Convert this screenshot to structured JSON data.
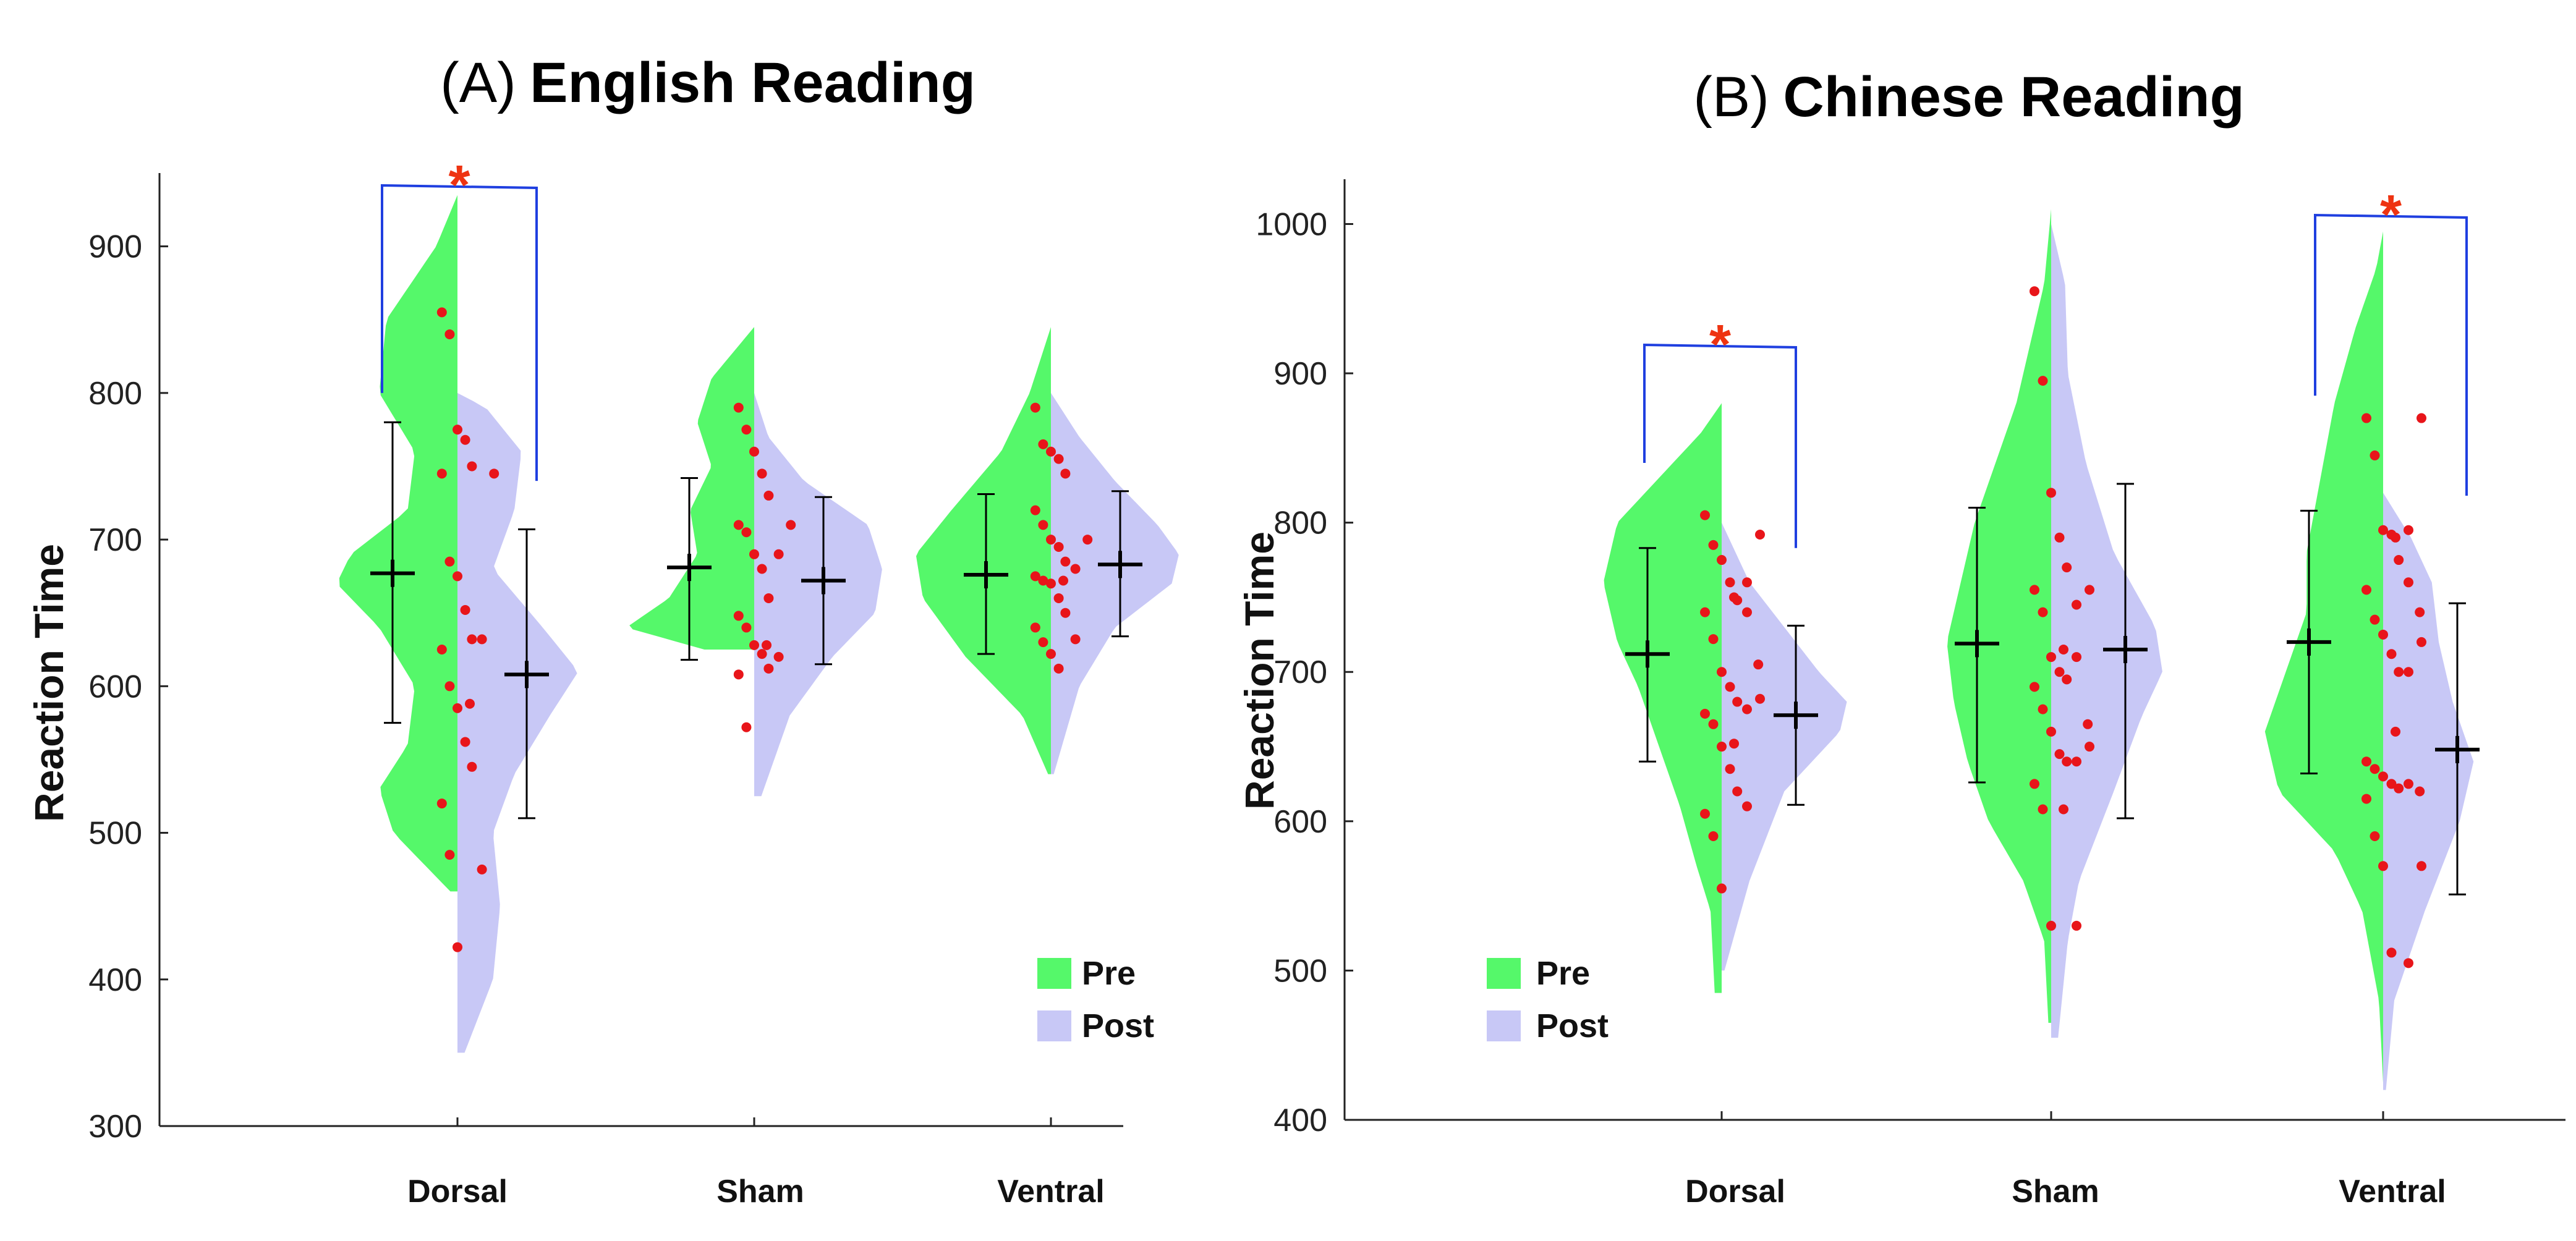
{
  "colors": {
    "pre": "#55f86a",
    "post": "#c8c8f6",
    "dot": "#e8151a",
    "bracket": "#1f3fe0",
    "star": "#ee3311",
    "axis": "#222222"
  },
  "chart_data": [
    {
      "type": "violin",
      "panel": "(A)",
      "title": "English Reading",
      "ylabel": "Reaction Time",
      "xlabel": "",
      "ylim": [
        300,
        950
      ],
      "yticks": [
        300,
        400,
        500,
        600,
        700,
        800,
        900
      ],
      "categories": [
        "Dorsal",
        "Sham",
        "Ventral"
      ],
      "legend": {
        "position": "bottom-right",
        "entries": [
          "Pre",
          "Post"
        ]
      },
      "series": [
        {
          "name": "Pre",
          "means": [
            677,
            681,
            676
          ],
          "error_bars": [
            [
              575,
              780
            ],
            [
              618,
              742
            ],
            [
              622,
              731
            ]
          ],
          "violin_range": [
            [
              460,
              935
            ],
            [
              625,
              845
            ],
            [
              540,
              845
            ]
          ],
          "profiles": [
            [
              [
                460,
                0.05
              ],
              [
                500,
                0.45
              ],
              [
                530,
                0.55
              ],
              [
                560,
                0.35
              ],
              [
                600,
                0.3
              ],
              [
                640,
                0.55
              ],
              [
                670,
                0.85
              ],
              [
                690,
                0.75
              ],
              [
                720,
                0.35
              ],
              [
                760,
                0.3
              ],
              [
                800,
                0.55
              ],
              [
                850,
                0.5
              ],
              [
                900,
                0.15
              ],
              [
                935,
                0.0
              ]
            ],
            [
              [
                625,
                0.35
              ],
              [
                640,
                0.9
              ],
              [
                660,
                0.6
              ],
              [
                690,
                0.4
              ],
              [
                720,
                0.45
              ],
              [
                750,
                0.3
              ],
              [
                780,
                0.4
              ],
              [
                810,
                0.3
              ],
              [
                845,
                0.0
              ]
            ],
            [
              [
                540,
                0.02
              ],
              [
                580,
                0.2
              ],
              [
                620,
                0.6
              ],
              [
                660,
                0.9
              ],
              [
                690,
                0.95
              ],
              [
                720,
                0.7
              ],
              [
                760,
                0.35
              ],
              [
                800,
                0.15
              ],
              [
                845,
                0.0
              ]
            ]
          ],
          "points": [
            [
              855,
              840,
              775,
              768,
              750,
              745,
              685,
              675,
              652,
              632,
              625,
              600,
              585,
              562,
              545,
              520,
              485,
              422
            ],
            [
              790,
              775,
              760,
              745,
              730,
              710,
              705,
              690,
              680,
              660,
              648,
              640,
              628,
              622,
              612,
              608,
              572
            ],
            [
              790,
              765,
              760,
              755,
              745,
              720,
              710,
              700,
              695,
              685,
              675,
              672,
              670,
              660,
              650,
              640,
              630,
              622,
              612
            ]
          ]
        },
        {
          "name": "Post",
          "means": [
            608,
            672,
            683
          ],
          "error_bars": [
            [
              510,
              707
            ],
            [
              615,
              729
            ],
            [
              634,
              733
            ]
          ],
          "violin_range": [
            [
              350,
              800
            ],
            [
              525,
              800
            ],
            [
              540,
              800
            ]
          ],
          "profiles": [
            [
              [
                350,
                0.05
              ],
              [
                400,
                0.25
              ],
              [
                450,
                0.3
              ],
              [
                500,
                0.25
              ],
              [
                540,
                0.4
              ],
              [
                580,
                0.65
              ],
              [
                610,
                0.85
              ],
              [
                640,
                0.6
              ],
              [
                680,
                0.25
              ],
              [
                720,
                0.4
              ],
              [
                760,
                0.45
              ],
              [
                790,
                0.2
              ],
              [
                800,
                0.0
              ]
            ],
            [
              [
                525,
                0.05
              ],
              [
                580,
                0.25
              ],
              [
                620,
                0.55
              ],
              [
                650,
                0.85
              ],
              [
                680,
                0.9
              ],
              [
                710,
                0.8
              ],
              [
                740,
                0.35
              ],
              [
                770,
                0.1
              ],
              [
                800,
                0.0
              ]
            ],
            [
              [
                540,
                0.02
              ],
              [
                600,
                0.2
              ],
              [
                640,
                0.45
              ],
              [
                670,
                0.85
              ],
              [
                690,
                0.9
              ],
              [
                710,
                0.75
              ],
              [
                740,
                0.45
              ],
              [
                770,
                0.2
              ],
              [
                800,
                0.0
              ]
            ]
          ],
          "points": [
            [
              745,
              632,
              588,
              475
            ],
            [
              710,
              690,
              628,
              620
            ],
            [
              700,
              680,
              672,
              632
            ]
          ]
        }
      ],
      "significance": [
        {
          "category": "Dorsal",
          "label": "*"
        }
      ]
    },
    {
      "type": "violin",
      "panel": "(B)",
      "title": "Chinese Reading",
      "ylabel": "Reaction Time",
      "xlabel": "",
      "ylim": [
        400,
        1030
      ],
      "yticks": [
        400,
        500,
        600,
        700,
        800,
        900,
        1000
      ],
      "categories": [
        "Dorsal",
        "Sham",
        "Ventral"
      ],
      "legend": {
        "position": "bottom-left",
        "entries": [
          "Pre",
          "Post"
        ]
      },
      "series": [
        {
          "name": "Pre",
          "means": [
            712,
            719,
            720
          ],
          "error_bars": [
            [
              640,
              783
            ],
            [
              626,
              810
            ],
            [
              632,
              808
            ]
          ],
          "violin_range": [
            [
              485,
              880
            ],
            [
              465,
              1010
            ],
            [
              425,
              995
            ]
          ],
          "profiles": [
            [
              [
                485,
                0.05
              ],
              [
                540,
                0.08
              ],
              [
                570,
                0.18
              ],
              [
                610,
                0.3
              ],
              [
                650,
                0.45
              ],
              [
                690,
                0.6
              ],
              [
                720,
                0.75
              ],
              [
                760,
                0.85
              ],
              [
                800,
                0.75
              ],
              [
                830,
                0.45
              ],
              [
                860,
                0.15
              ],
              [
                880,
                0.0
              ]
            ],
            [
              [
                465,
                0.02
              ],
              [
                520,
                0.05
              ],
              [
                560,
                0.2
              ],
              [
                600,
                0.45
              ],
              [
                640,
                0.6
              ],
              [
                680,
                0.7
              ],
              [
                720,
                0.75
              ],
              [
                760,
                0.65
              ],
              [
                800,
                0.55
              ],
              [
                840,
                0.4
              ],
              [
                880,
                0.25
              ],
              [
                920,
                0.15
              ],
              [
                960,
                0.05
              ],
              [
                1010,
                0.0
              ]
            ],
            [
              [
                425,
                0.0
              ],
              [
                480,
                0.03
              ],
              [
                540,
                0.15
              ],
              [
                580,
                0.35
              ],
              [
                620,
                0.75
              ],
              [
                660,
                0.85
              ],
              [
                700,
                0.7
              ],
              [
                740,
                0.55
              ],
              [
                780,
                0.55
              ],
              [
                830,
                0.45
              ],
              [
                880,
                0.35
              ],
              [
                930,
                0.2
              ],
              [
                970,
                0.05
              ],
              [
                995,
                0.0
              ]
            ]
          ],
          "points": [
            [
              805,
              785,
              775,
              760,
              748,
              740,
              722,
              700,
              690,
              680,
              672,
              665,
              650,
              635,
              620,
              605,
              590,
              555
            ],
            [
              955,
              895,
              820,
              790,
              770,
              755,
              740,
              710,
              700,
              695,
              690,
              675,
              660,
              645,
              640,
              625,
              608,
              530
            ],
            [
              870,
              845,
              795,
              792,
              775,
              755,
              735,
              725,
              712,
              700,
              640,
              635,
              630,
              625,
              622,
              615,
              590,
              570,
              512
            ]
          ]
        },
        {
          "name": "Post",
          "means": [
            671,
            715,
            648
          ],
          "error_bars": [
            [
              611,
              731
            ],
            [
              602,
              826
            ],
            [
              551,
              746
            ]
          ],
          "violin_range": [
            [
              500,
              800
            ],
            [
              455,
              1000
            ],
            [
              420,
              820
            ]
          ],
          "profiles": [
            [
              [
                500,
                0.02
              ],
              [
                560,
                0.2
              ],
              [
                620,
                0.45
              ],
              [
                660,
                0.85
              ],
              [
                680,
                0.9
              ],
              [
                700,
                0.7
              ],
              [
                730,
                0.45
              ],
              [
                760,
                0.2
              ],
              [
                800,
                0.0
              ]
            ],
            [
              [
                455,
                0.05
              ],
              [
                520,
                0.12
              ],
              [
                560,
                0.2
              ],
              [
                620,
                0.45
              ],
              [
                670,
                0.65
              ],
              [
                700,
                0.8
              ],
              [
                730,
                0.75
              ],
              [
                780,
                0.45
              ],
              [
                840,
                0.25
              ],
              [
                900,
                0.12
              ],
              [
                960,
                0.1
              ],
              [
                1000,
                0.0
              ]
            ],
            [
              [
                420,
                0.02
              ],
              [
                480,
                0.08
              ],
              [
                540,
                0.3
              ],
              [
                600,
                0.55
              ],
              [
                640,
                0.65
              ],
              [
                680,
                0.5
              ],
              [
                720,
                0.4
              ],
              [
                760,
                0.35
              ],
              [
                790,
                0.2
              ],
              [
                820,
                0.0
              ]
            ]
          ],
          "points": [
            [
              792,
              760,
              750,
              740,
              705,
              682,
              675,
              652,
              610
            ],
            [
              755,
              745,
              715,
              710,
              665,
              650,
              640,
              608,
              530
            ],
            [
              870,
              795,
              790,
              760,
              740,
              720,
              700,
              660,
              625,
              620,
              570,
              505
            ]
          ]
        }
      ],
      "significance": [
        {
          "category": "Dorsal",
          "label": "*"
        },
        {
          "category": "Ventral",
          "label": "*"
        }
      ]
    }
  ]
}
